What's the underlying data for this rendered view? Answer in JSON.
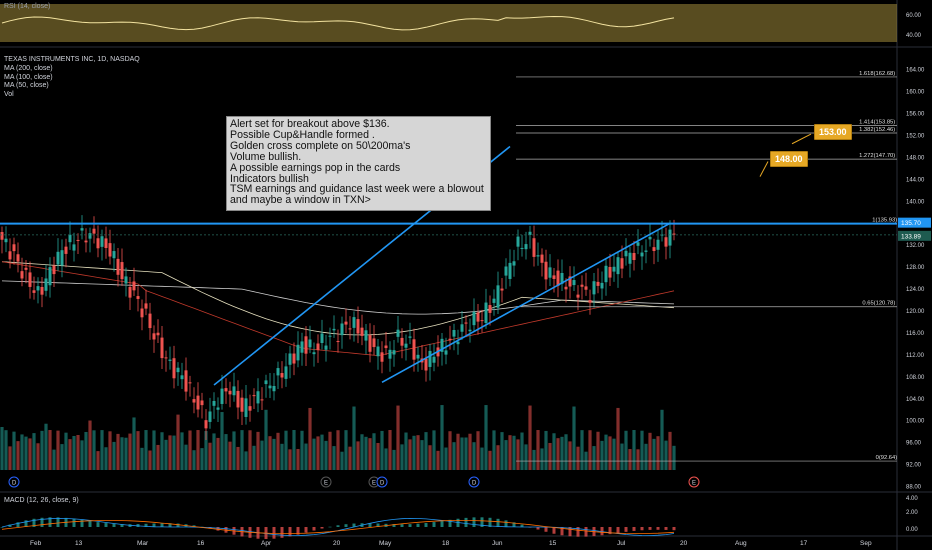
{
  "symbol_line": "TEXAS INSTRUMENTS INC, 1D, NASDAQ",
  "indicators": [
    "MA (200, close)",
    "MA (100, close)",
    "MA (50, close)",
    "Vol"
  ],
  "rsi_title": "RSI (14, close)",
  "macd_title": "MACD (12, 26, close, 9)",
  "note_lines": [
    "Alert set for breakout above $136.",
    "Possible Cup&Handle formed .",
    "Golden cross complete on 50\\200ma's",
    "Volume bullish.",
    "A possible earnings pop in the cards",
    "Indicators bullish",
    "TSM earnings and guidance last week were a blowout",
    "and maybe a window in TXN>"
  ],
  "targets": [
    {
      "label": "153.00",
      "price": 153.0
    },
    {
      "label": "148.00",
      "price": 148.0
    }
  ],
  "colors": {
    "up": "#26a69a",
    "down": "#ef5350",
    "trend": "#2196f3",
    "ma50": "#c0392b",
    "ma100": "#e8e2c0",
    "ma200": "#cfcfcf",
    "rsi_fill": "#a08a3a",
    "tag": "#e6a825"
  },
  "chart_data": {
    "type": "candlestick",
    "ticker": "TEXAS INSTRUMENTS INC",
    "timeframe": "1D",
    "exchange": "NASDAQ",
    "y_axis_ticks": [
      "164.00",
      "160.00",
      "156.00",
      "152.00",
      "148.00",
      "144.00",
      "140.00",
      "136.00",
      "132.00",
      "128.00",
      "124.00",
      "120.00",
      "116.00",
      "112.00",
      "108.00",
      "104.00",
      "100.00",
      "96.00",
      "92.00",
      "88.00"
    ],
    "ylim": [
      87,
      166.5
    ],
    "x_axis_labels": [
      "Feb",
      "13",
      "Mar",
      "16",
      "Apr",
      "20",
      "May",
      "18",
      "Jun",
      "15",
      "Jul",
      "20",
      "Aug",
      "17",
      "Sep"
    ],
    "last_price": "135.70",
    "current_price": "133.89",
    "fib_levels": [
      {
        "label": "1.618(162.68)",
        "value": 162.68
      },
      {
        "label": "1.414(153.85)",
        "value": 153.85
      },
      {
        "label": "1.382(152.46)",
        "value": 152.46
      },
      {
        "label": "1.272(147.70)",
        "value": 147.7
      },
      {
        "label": "1(135.93)",
        "value": 135.93
      },
      {
        "label": "0.65(120.78)",
        "value": 120.78
      },
      {
        "label": "0(92.64)",
        "value": 92.64
      }
    ],
    "resistance": 135.93,
    "close_path": [
      [
        0,
        133
      ],
      [
        3,
        130
      ],
      [
        6,
        126
      ],
      [
        9,
        123
      ],
      [
        12,
        127
      ],
      [
        15,
        131
      ],
      [
        18,
        133
      ],
      [
        21,
        134
      ],
      [
        24,
        133
      ],
      [
        27,
        131
      ],
      [
        30,
        126
      ],
      [
        33,
        123
      ],
      [
        36,
        119
      ],
      [
        39,
        114
      ],
      [
        42,
        110
      ],
      [
        45,
        108
      ],
      [
        48,
        104
      ],
      [
        51,
        100
      ],
      [
        54,
        104
      ],
      [
        57,
        106
      ],
      [
        60,
        102
      ],
      [
        63,
        104
      ],
      [
        66,
        106
      ],
      [
        69,
        108
      ],
      [
        72,
        111
      ],
      [
        75,
        114
      ],
      [
        78,
        113
      ],
      [
        81,
        115
      ],
      [
        84,
        116
      ],
      [
        87,
        118
      ],
      [
        90,
        116
      ],
      [
        93,
        113
      ],
      [
        96,
        112
      ],
      [
        99,
        115
      ],
      [
        102,
        114
      ],
      [
        105,
        110
      ],
      [
        108,
        112
      ],
      [
        111,
        114
      ],
      [
        114,
        116
      ],
      [
        117,
        118
      ],
      [
        120,
        119
      ],
      [
        123,
        122
      ],
      [
        126,
        127
      ],
      [
        129,
        132
      ],
      [
        132,
        133
      ],
      [
        135,
        128
      ],
      [
        138,
        126
      ],
      [
        141,
        125
      ],
      [
        144,
        124
      ],
      [
        147,
        123
      ],
      [
        150,
        126
      ],
      [
        153,
        128
      ],
      [
        156,
        130
      ],
      [
        159,
        131
      ],
      [
        162,
        132
      ],
      [
        165,
        133
      ],
      [
        168,
        134
      ]
    ],
    "rsi_ticks": [
      "60.00",
      "40.00"
    ],
    "macd_ticks": [
      "4.00",
      "2.00",
      "0.00"
    ],
    "trendlines": [
      {
        "from": [
          53,
          106.5
        ],
        "to": [
          127,
          150
        ]
      },
      {
        "from": [
          95,
          107
        ],
        "to": [
          167,
          136
        ]
      }
    ]
  }
}
